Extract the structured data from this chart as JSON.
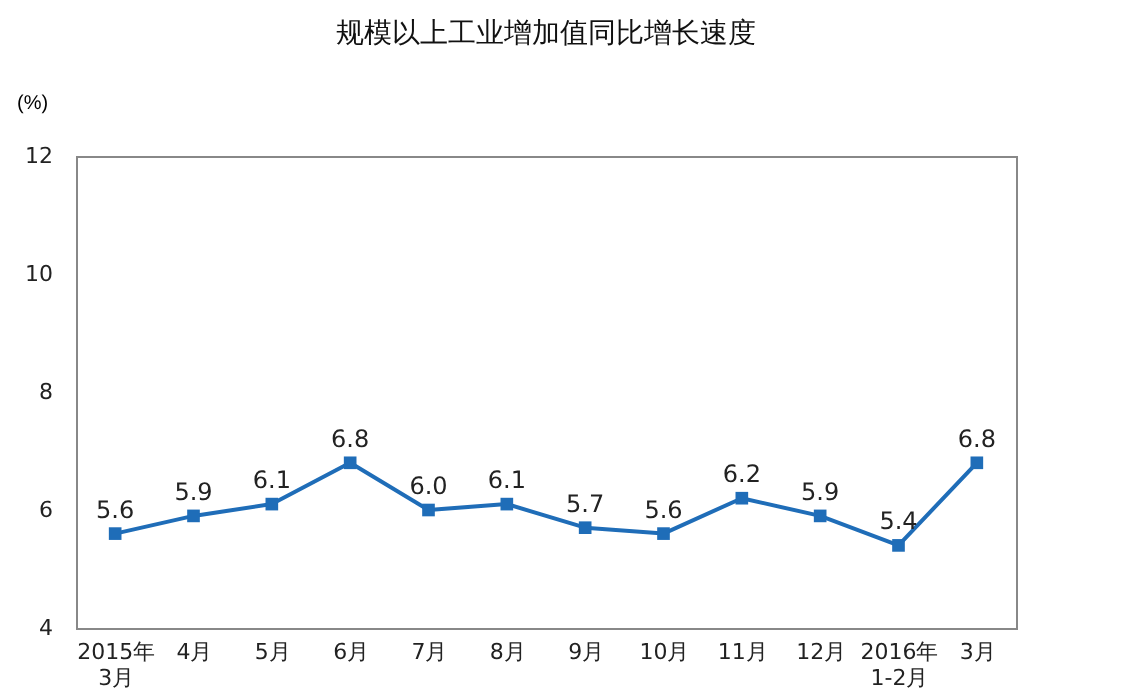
{
  "chart_data": {
    "type": "line",
    "title": "规模以上工业增加值同比增长速度",
    "ylabel": "(%)",
    "categories": [
      "2015年\n3月",
      "4月",
      "5月",
      "6月",
      "7月",
      "8月",
      "9月",
      "10月",
      "11月",
      "12月",
      "2016年\n1-2月",
      "3月"
    ],
    "series": [
      {
        "color": "#1f6db8",
        "values": [
          5.6,
          5.9,
          6.1,
          6.8,
          6.0,
          6.1,
          5.7,
          5.6,
          6.2,
          5.9,
          5.4,
          6.8
        ],
        "value_labels": [
          "5.6",
          "5.9",
          "6.1",
          "6.8",
          "6.0",
          "6.1",
          "5.7",
          "5.6",
          "6.2",
          "5.9",
          "5.4",
          "6.8"
        ]
      }
    ],
    "ylim": [
      4,
      12
    ],
    "yticks": [
      4,
      6,
      8,
      10,
      12
    ],
    "grid": false,
    "marker": "square",
    "line_style": "solid"
  }
}
